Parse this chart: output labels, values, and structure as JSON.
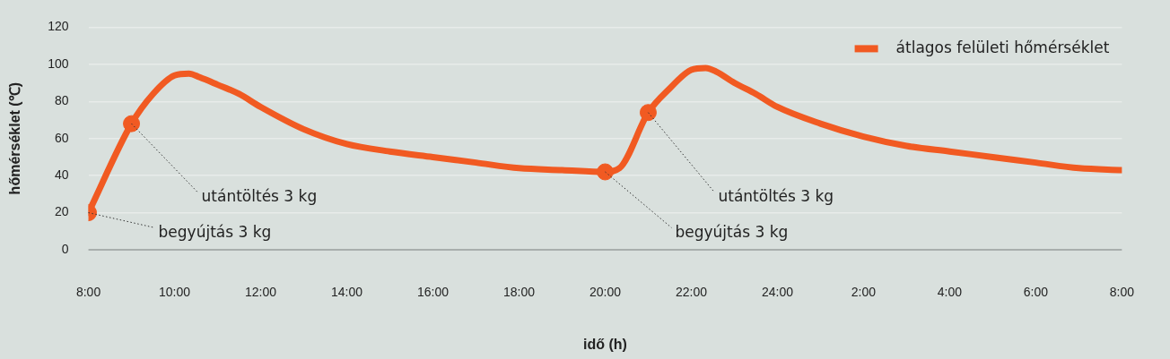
{
  "chart_data": {
    "type": "line",
    "xlabel": "idő (h)",
    "ylabel": "hőmérséklet (℃)",
    "series": [
      {
        "name": "átlagos felületi hőmérséklet",
        "color": "#f15a22",
        "x": [
          "2000-01-01T08:00",
          "2000-01-01T09:00",
          "2000-01-01T09:30",
          "2000-01-01T10:00",
          "2000-01-01T10:20",
          "2000-01-01T10:35",
          "2000-01-01T11:00",
          "2000-01-01T11:30",
          "2000-01-01T12:00",
          "2000-01-01T13:00",
          "2000-01-01T14:00",
          "2000-01-01T15:00",
          "2000-01-01T16:00",
          "2000-01-01T17:00",
          "2000-01-01T18:00",
          "2000-01-01T19:00",
          "2000-01-01T20:00",
          "2000-01-01T20:20",
          "2000-01-01T21:00",
          "2000-01-01T21:30",
          "2000-01-01T22:00",
          "2000-01-01T22:20",
          "2000-01-01T22:35",
          "2000-01-01T23:00",
          "2000-01-01T23:30",
          "2000-01-02T00:00",
          "2000-01-02T01:00",
          "2000-01-02T02:00",
          "2000-01-02T03:00",
          "2000-01-02T04:00",
          "2000-01-02T05:00",
          "2000-01-02T06:00",
          "2000-01-02T07:00",
          "2000-01-02T08:00"
        ],
        "values": [
          20,
          68,
          84,
          94,
          95,
          93,
          89,
          84,
          77,
          65,
          57,
          53,
          50,
          47,
          44,
          43,
          42,
          44,
          74,
          87,
          97,
          98,
          96,
          90,
          84,
          77,
          68,
          61,
          56,
          53,
          50,
          47,
          44,
          43
        ],
        "marker": "none"
      },
      {
        "type": "scatter",
        "color": "#f15a22",
        "x": [
          "2000-01-01T08:00",
          "2000-01-01T09:00",
          "2000-01-01T20:00",
          "2000-01-01T21:00"
        ],
        "values": [
          20,
          68,
          42,
          74
        ],
        "marker": "circle"
      }
    ],
    "annotations": [
      {
        "text": "begyújtás 3 kg",
        "x": "2000-01-01T08:00",
        "y": 20
      },
      {
        "text": "utántöltés 3 kg",
        "x": "2000-01-01T09:00",
        "y": 68
      },
      {
        "text": "begyújtás 3 kg",
        "x": "2000-01-01T20:00",
        "y": 42
      },
      {
        "text": "utántöltés 3 kg",
        "x": "2000-01-01T21:00",
        "y": 74
      }
    ],
    "xlim": [
      "2000-01-01T08:00",
      "2000-01-02T08:00"
    ],
    "xticks": [
      {
        "value": "2000-01-01T08:00",
        "label": "8:00"
      },
      {
        "value": "2000-01-01T10:00",
        "label": "10:00"
      },
      {
        "value": "2000-01-01T12:00",
        "label": "12:00"
      },
      {
        "value": "2000-01-01T14:00",
        "label": "14:00"
      },
      {
        "value": "2000-01-01T16:00",
        "label": "16:00"
      },
      {
        "value": "2000-01-01T18:00",
        "label": "18:00"
      },
      {
        "value": "2000-01-01T20:00",
        "label": "20:00"
      },
      {
        "value": "2000-01-01T22:00",
        "label": "22:00"
      },
      {
        "value": "2000-01-02T00:00",
        "label": "24:00"
      },
      {
        "value": "2000-01-02T02:00",
        "label": "2:00"
      },
      {
        "value": "2000-01-02T04:00",
        "label": "4:00"
      },
      {
        "value": "2000-01-02T06:00",
        "label": "6:00"
      },
      {
        "value": "2000-01-02T08:00",
        "label": "8:00"
      }
    ],
    "ylim": [
      0,
      120
    ],
    "yticks": [
      0,
      20,
      40,
      60,
      80,
      100,
      120
    ],
    "grid": "y",
    "legend": "top right",
    "line_style": "solid"
  }
}
